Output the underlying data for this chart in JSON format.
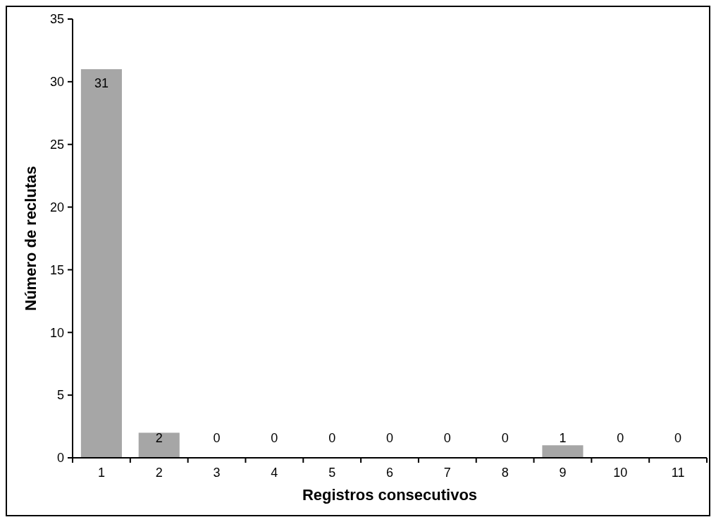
{
  "chart_data": {
    "type": "bar",
    "xlabel": "Registros consecutivos",
    "ylabel": "Número de reclutas",
    "categories": [
      "1",
      "2",
      "3",
      "4",
      "5",
      "6",
      "7",
      "8",
      "9",
      "10",
      "11"
    ],
    "values": [
      31,
      2,
      0,
      0,
      0,
      0,
      0,
      0,
      1,
      0,
      0
    ],
    "color": "#a6a6a6",
    "ylim": [
      0,
      35
    ],
    "yticks": [
      0,
      5,
      10,
      15,
      20,
      25,
      30,
      35
    ],
    "data_labels": true,
    "grid": false
  }
}
